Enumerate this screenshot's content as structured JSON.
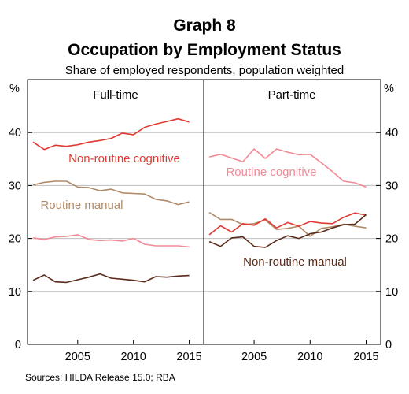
{
  "chart_data": {
    "type": "line",
    "title": "Graph 8",
    "subtitle": "Occupation by Employment Status",
    "description": "Share of employed respondents, population weighted",
    "unit": "%",
    "source": "Sources: HILDA Release 15.0; RBA",
    "ylim": [
      0,
      50
    ],
    "yticks": [
      0,
      10,
      20,
      30,
      40
    ],
    "xlim": [
      2000.5,
      2016.3
    ],
    "xticks": [
      "2005",
      "2010",
      "2015"
    ],
    "colors": {
      "non_routine_cognitive": "#e03a32",
      "routine_manual": "#b08a68",
      "routine_cognitive": "#f28a96",
      "non_routine_manual": "#5a2a1a"
    },
    "panels": [
      {
        "title": "Full-time",
        "series": [
          {
            "name": "Non-routine cognitive",
            "key": "non_routine_cognitive",
            "x": [
              2001,
              2002,
              2003,
              2004,
              2005,
              2006,
              2007,
              2008,
              2009,
              2010,
              2011,
              2012,
              2013,
              2014,
              2015
            ],
            "y": [
              38.2,
              36.8,
              37.6,
              37.4,
              37.7,
              38.2,
              38.5,
              38.9,
              39.9,
              39.6,
              41.0,
              41.6,
              42.1,
              42.6,
              42.0
            ]
          },
          {
            "name": "Routine manual",
            "key": "routine_manual",
            "x": [
              2001,
              2002,
              2003,
              2004,
              2005,
              2006,
              2007,
              2008,
              2009,
              2010,
              2011,
              2012,
              2013,
              2014,
              2015
            ],
            "y": [
              30.1,
              30.6,
              30.8,
              30.8,
              29.7,
              29.6,
              29.0,
              29.3,
              28.6,
              28.5,
              28.4,
              27.4,
              27.1,
              26.4,
              26.9
            ]
          },
          {
            "name": "Routine cognitive",
            "key": "routine_cognitive",
            "x": [
              2001,
              2002,
              2003,
              2004,
              2005,
              2006,
              2007,
              2008,
              2009,
              2010,
              2011,
              2012,
              2013,
              2014,
              2015
            ],
            "y": [
              20.1,
              19.8,
              20.3,
              20.4,
              20.7,
              19.8,
              19.6,
              19.7,
              19.5,
              20.0,
              18.9,
              18.6,
              18.6,
              18.6,
              18.4
            ]
          },
          {
            "name": "Non-routine manual",
            "key": "non_routine_manual",
            "x": [
              2001,
              2002,
              2003,
              2004,
              2005,
              2006,
              2007,
              2008,
              2009,
              2010,
              2011,
              2012,
              2013,
              2014,
              2015
            ],
            "y": [
              12.1,
              13.1,
              11.8,
              11.7,
              12.2,
              12.7,
              13.3,
              12.5,
              12.3,
              12.1,
              11.8,
              12.8,
              12.7,
              12.9,
              13.0
            ]
          }
        ]
      },
      {
        "title": "Part-time",
        "series": [
          {
            "name": "Routine cognitive",
            "key": "routine_cognitive",
            "x": [
              2001,
              2002,
              2003,
              2004,
              2005,
              2006,
              2007,
              2008,
              2009,
              2010,
              2011,
              2012,
              2013,
              2014,
              2015
            ],
            "y": [
              35.4,
              35.9,
              35.2,
              34.5,
              36.9,
              35.1,
              36.9,
              36.3,
              35.8,
              35.9,
              34.3,
              32.6,
              30.8,
              30.5,
              29.7
            ]
          },
          {
            "name": "Routine manual",
            "key": "routine_manual",
            "x": [
              2001,
              2002,
              2003,
              2004,
              2005,
              2006,
              2007,
              2008,
              2009,
              2010,
              2011,
              2012,
              2013,
              2014,
              2015
            ],
            "y": [
              24.9,
              23.6,
              23.6,
              22.6,
              22.8,
              23.5,
              21.7,
              21.9,
              22.3,
              20.4,
              21.9,
              22.2,
              22.7,
              22.3,
              22.0
            ]
          },
          {
            "name": "Non-routine cognitive",
            "key": "non_routine_cognitive",
            "x": [
              2001,
              2002,
              2003,
              2004,
              2005,
              2006,
              2007,
              2008,
              2009,
              2010,
              2011,
              2012,
              2013,
              2014,
              2015
            ],
            "y": [
              20.7,
              22.4,
              21.2,
              22.8,
              22.5,
              23.7,
              22.0,
              23.0,
              22.3,
              23.2,
              22.9,
              22.8,
              24.0,
              24.8,
              24.4
            ]
          },
          {
            "name": "Non-routine manual",
            "key": "non_routine_manual",
            "x": [
              2001,
              2002,
              2003,
              2004,
              2005,
              2006,
              2007,
              2008,
              2009,
              2010,
              2011,
              2012,
              2013,
              2014,
              2015
            ],
            "y": [
              19.4,
              18.5,
              20.1,
              20.3,
              18.5,
              18.3,
              19.6,
              20.5,
              20.0,
              20.9,
              21.2,
              22.0,
              22.6,
              22.7,
              24.5
            ]
          }
        ]
      }
    ],
    "annotations": [
      {
        "text": "Non-routine cognitive",
        "panel": 0,
        "key": "non_routine_cognitive"
      },
      {
        "text": "Routine manual",
        "panel": 0,
        "key": "routine_manual"
      },
      {
        "text": "Routine cognitive",
        "panel": 1,
        "key": "routine_cognitive"
      },
      {
        "text": "Non-routine manual",
        "panel": 1,
        "key": "non_routine_manual"
      }
    ]
  }
}
